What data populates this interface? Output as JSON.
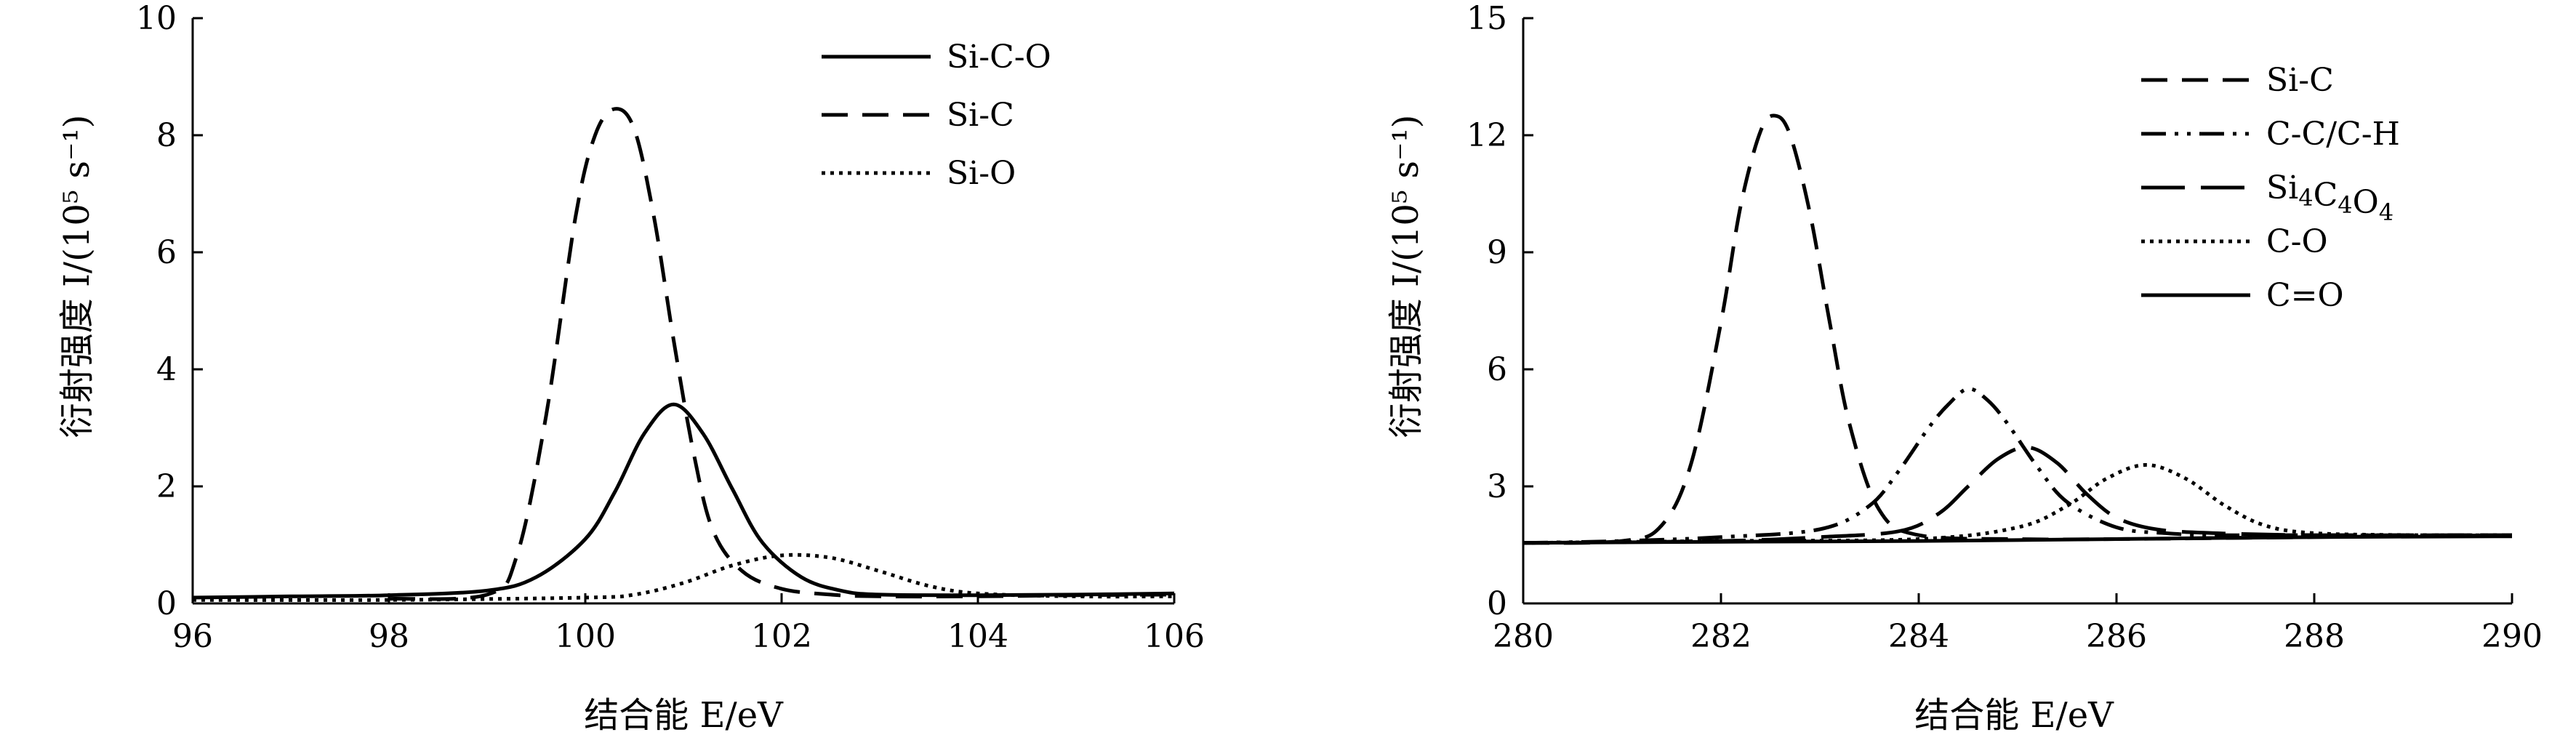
{
  "chart_data": [
    {
      "type": "line",
      "xlabel": "结合能 E/eV",
      "ylabel": "衍射强度 I/(10⁵ s⁻¹)",
      "xlim": [
        96,
        106
      ],
      "ylim": [
        0,
        10
      ],
      "x_ticks": [
        "96",
        "98",
        "100",
        "102",
        "104",
        "106"
      ],
      "y_ticks": [
        "0",
        "2",
        "4",
        "6",
        "8",
        "10"
      ],
      "legend_position": "top-right",
      "grid": false,
      "series": [
        {
          "name": "Si-C-O",
          "style": "solid",
          "x": [
            96,
            97,
            98,
            99,
            99.5,
            100,
            100.3,
            100.6,
            100.9,
            101.2,
            101.5,
            101.8,
            102.2,
            102.6,
            103,
            104,
            105,
            106
          ],
          "y": [
            0.1,
            0.12,
            0.14,
            0.22,
            0.45,
            1.1,
            1.9,
            2.9,
            3.4,
            2.9,
            1.95,
            1.05,
            0.45,
            0.22,
            0.15,
            0.14,
            0.15,
            0.17
          ]
        },
        {
          "name": "Si-C",
          "style": "dash",
          "x": [
            98,
            99,
            99.3,
            99.6,
            99.9,
            100.1,
            100.3,
            100.5,
            100.7,
            100.9,
            101.1,
            101.3,
            101.6,
            102,
            102.5,
            103,
            104,
            105,
            106
          ],
          "y": [
            0.08,
            0.15,
            0.8,
            3.2,
            6.6,
            8.0,
            8.45,
            8.1,
            6.6,
            4.5,
            2.6,
            1.25,
            0.55,
            0.25,
            0.15,
            0.12,
            0.12,
            0.14,
            0.15
          ]
        },
        {
          "name": "Si-O",
          "style": "dot",
          "x": [
            96,
            98,
            100,
            100.5,
            101,
            101.5,
            102,
            102.5,
            103,
            103.5,
            104,
            105,
            106
          ],
          "y": [
            0.06,
            0.06,
            0.1,
            0.15,
            0.35,
            0.65,
            0.82,
            0.78,
            0.55,
            0.3,
            0.17,
            0.12,
            0.12
          ]
        }
      ]
    },
    {
      "type": "line",
      "xlabel": "结合能 E/eV",
      "ylabel": "衍射强度 I/(10⁵ s⁻¹)",
      "xlim": [
        280,
        290
      ],
      "ylim": [
        0,
        15
      ],
      "x_ticks": [
        "280",
        "282",
        "284",
        "286",
        "288",
        "290"
      ],
      "y_ticks": [
        "0",
        "3",
        "6",
        "9",
        "12",
        "15"
      ],
      "legend_position": "top-right",
      "grid": false,
      "series": [
        {
          "name": "Si-C",
          "style": "dash",
          "x": [
            280,
            281,
            281.4,
            281.7,
            282,
            282.2,
            282.4,
            282.55,
            282.7,
            282.9,
            283.1,
            283.3,
            283.6,
            284,
            285,
            286,
            288,
            290
          ],
          "y": [
            1.55,
            1.6,
            2.0,
            3.6,
            7.2,
            10.2,
            12.1,
            12.5,
            12.0,
            10.0,
            7.2,
            4.6,
            2.4,
            1.75,
            1.65,
            1.65,
            1.7,
            1.75
          ]
        },
        {
          "name": "C-C/C-H",
          "style": "dashdotdot",
          "x": [
            280,
            281,
            282,
            283,
            283.5,
            283.8,
            284.1,
            284.3,
            284.5,
            284.7,
            284.9,
            285.2,
            285.5,
            286,
            286.5,
            287,
            288,
            290
          ],
          "y": [
            1.55,
            1.6,
            1.7,
            1.9,
            2.5,
            3.4,
            4.5,
            5.1,
            5.5,
            5.2,
            4.6,
            3.5,
            2.6,
            1.95,
            1.8,
            1.75,
            1.75,
            1.75
          ]
        },
        {
          "name": "Si4C4O4",
          "style": "longdash",
          "x": [
            280,
            282,
            283,
            283.8,
            284.2,
            284.5,
            284.8,
            285.1,
            285.4,
            285.7,
            286,
            286.4,
            287,
            288,
            290
          ],
          "y": [
            1.55,
            1.6,
            1.7,
            1.85,
            2.3,
            3.0,
            3.7,
            4.0,
            3.6,
            2.8,
            2.2,
            1.9,
            1.8,
            1.75,
            1.75
          ]
        },
        {
          "name": "C-O",
          "style": "dot",
          "x": [
            280,
            282,
            284,
            285,
            285.5,
            285.9,
            286.3,
            286.7,
            287.1,
            287.5,
            288,
            289,
            290
          ],
          "y": [
            1.55,
            1.6,
            1.65,
            1.95,
            2.5,
            3.2,
            3.55,
            3.2,
            2.5,
            2.0,
            1.8,
            1.75,
            1.75
          ]
        },
        {
          "name": "C=O",
          "style": "solid",
          "x": [
            280,
            282,
            284,
            286,
            288,
            290
          ],
          "y": [
            1.55,
            1.58,
            1.6,
            1.65,
            1.7,
            1.72
          ]
        }
      ]
    }
  ]
}
